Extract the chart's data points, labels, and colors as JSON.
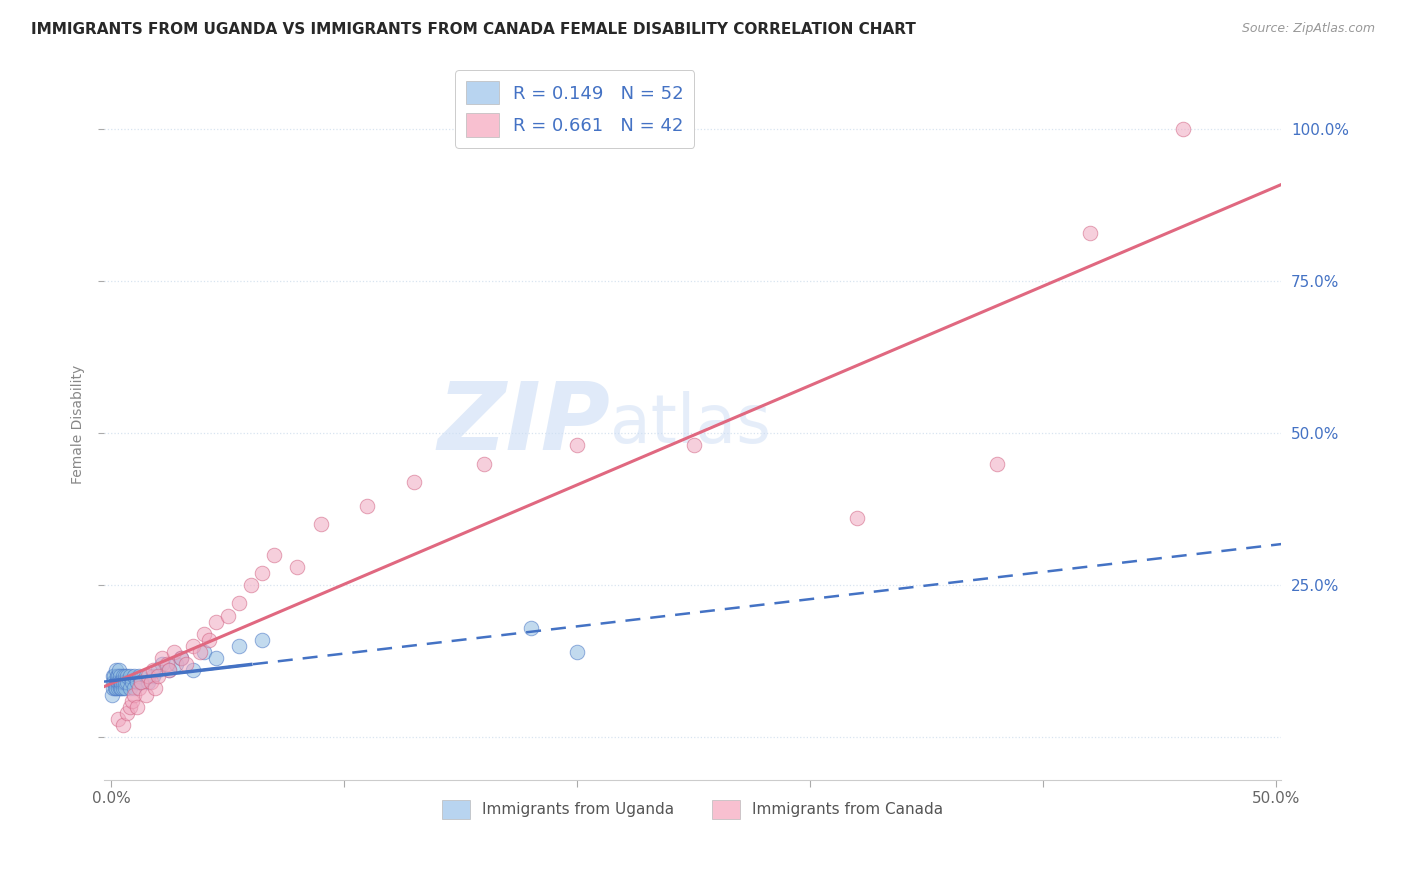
{
  "title": "IMMIGRANTS FROM UGANDA VS IMMIGRANTS FROM CANADA FEMALE DISABILITY CORRELATION CHART",
  "source": "Source: ZipAtlas.com",
  "ylabel": "Female Disability",
  "xlim_min": -0.003,
  "xlim_max": 0.502,
  "ylim_min": -0.07,
  "ylim_max": 1.1,
  "legend_r1": "R = 0.149",
  "legend_n1": "N = 52",
  "legend_r2": "R = 0.661",
  "legend_n2": "N = 42",
  "legend1_patch_color": "#b8d4f0",
  "legend2_patch_color": "#f8c0d0",
  "legend_text_color": "#4472c4",
  "label1": "Immigrants from Uganda",
  "label2": "Immigrants from Canada",
  "uganda_dot_color": "#90bce0",
  "canada_dot_color": "#f0a8c0",
  "uganda_edge_color": "#4472c4",
  "canada_edge_color": "#d06080",
  "uganda_line_color": "#4472c4",
  "canada_line_color": "#e06880",
  "watermark_color": "#ccddf5",
  "background": "#ffffff",
  "grid_color": "#d8e4f0",
  "xtick_vals": [
    0.0,
    0.1,
    0.2,
    0.3,
    0.4,
    0.5
  ],
  "ytick_vals": [
    0.0,
    0.25,
    0.5,
    0.75,
    1.0
  ],
  "uganda_x": [
    0.0005,
    0.0008,
    0.001,
    0.001,
    0.0012,
    0.0015,
    0.0018,
    0.002,
    0.002,
    0.0022,
    0.0025,
    0.003,
    0.003,
    0.003,
    0.0032,
    0.0035,
    0.004,
    0.004,
    0.004,
    0.0042,
    0.0045,
    0.005,
    0.005,
    0.0052,
    0.006,
    0.006,
    0.006,
    0.007,
    0.007,
    0.008,
    0.008,
    0.009,
    0.01,
    0.01,
    0.011,
    0.012,
    0.013,
    0.015,
    0.016,
    0.018,
    0.02,
    0.022,
    0.025,
    0.028,
    0.03,
    0.035,
    0.04,
    0.045,
    0.055,
    0.065,
    0.18,
    0.2
  ],
  "uganda_y": [
    0.07,
    0.09,
    0.1,
    0.08,
    0.09,
    0.1,
    0.08,
    0.09,
    0.11,
    0.08,
    0.1,
    0.09,
    0.08,
    0.1,
    0.09,
    0.11,
    0.08,
    0.1,
    0.09,
    0.08,
    0.09,
    0.1,
    0.08,
    0.09,
    0.08,
    0.1,
    0.09,
    0.09,
    0.1,
    0.08,
    0.1,
    0.09,
    0.1,
    0.08,
    0.09,
    0.1,
    0.09,
    0.1,
    0.09,
    0.1,
    0.11,
    0.12,
    0.11,
    0.12,
    0.13,
    0.11,
    0.14,
    0.13,
    0.15,
    0.16,
    0.18,
    0.14
  ],
  "canada_x": [
    0.003,
    0.005,
    0.007,
    0.008,
    0.009,
    0.01,
    0.011,
    0.012,
    0.013,
    0.015,
    0.016,
    0.017,
    0.018,
    0.019,
    0.02,
    0.022,
    0.024,
    0.025,
    0.027,
    0.03,
    0.032,
    0.035,
    0.038,
    0.04,
    0.042,
    0.045,
    0.05,
    0.055,
    0.06,
    0.065,
    0.07,
    0.08,
    0.09,
    0.11,
    0.13,
    0.16,
    0.2,
    0.25,
    0.32,
    0.38,
    0.42,
    0.46
  ],
  "canada_y": [
    0.03,
    0.02,
    0.04,
    0.05,
    0.06,
    0.07,
    0.05,
    0.08,
    0.09,
    0.07,
    0.1,
    0.09,
    0.11,
    0.08,
    0.1,
    0.13,
    0.12,
    0.11,
    0.14,
    0.13,
    0.12,
    0.15,
    0.14,
    0.17,
    0.16,
    0.19,
    0.2,
    0.22,
    0.25,
    0.27,
    0.3,
    0.28,
    0.35,
    0.38,
    0.42,
    0.45,
    0.48,
    0.48,
    0.36,
    0.45,
    0.83,
    1.0
  ]
}
